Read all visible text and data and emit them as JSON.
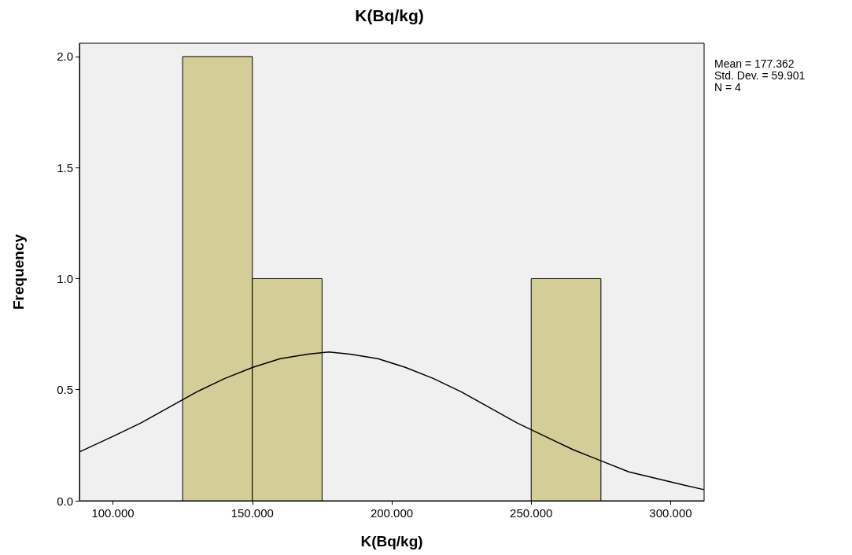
{
  "chart_data": {
    "type": "histogram",
    "title": "K(Bq/kg)",
    "xlabel": "K(Bq/kg)",
    "ylabel": "Frequency",
    "annotations": [
      "Mean = 177.362",
      "Std. Dev. = 59.901",
      "N = 4"
    ],
    "bins": [
      125,
      150,
      175,
      200,
      225,
      250,
      275
    ],
    "values": [
      2,
      1,
      0,
      0,
      0,
      1
    ],
    "color": "#d3ce97",
    "series": [
      {
        "type": "line",
        "color": "#000000",
        "x": [
          88,
          100,
          110,
          120,
          130,
          140,
          150,
          160,
          170,
          177.4,
          185,
          195,
          205,
          215,
          225,
          235,
          245,
          255,
          265,
          275,
          285,
          295,
          305,
          312
        ],
        "values": [
          0.22,
          0.29,
          0.35,
          0.42,
          0.49,
          0.55,
          0.6,
          0.64,
          0.66,
          0.67,
          0.66,
          0.64,
          0.6,
          0.55,
          0.49,
          0.42,
          0.35,
          0.29,
          0.23,
          0.18,
          0.13,
          0.1,
          0.07,
          0.05
        ]
      }
    ],
    "xlim": [
      88,
      312
    ],
    "xticks": [
      {
        "value": 100,
        "label": "100.000"
      },
      {
        "value": 150,
        "label": "150.000"
      },
      {
        "value": 200,
        "label": "200.000"
      },
      {
        "value": 250,
        "label": "250.000"
      },
      {
        "value": 300,
        "label": "300.000"
      }
    ],
    "ylim": [
      0,
      2.06
    ],
    "yticks": [
      {
        "value": 0,
        "label": "0.0"
      },
      {
        "value": 0.5,
        "label": "0.5"
      },
      {
        "value": 1,
        "label": "1.0"
      },
      {
        "value": 1.5,
        "label": "1.5"
      },
      {
        "value": 2,
        "label": "2.0"
      }
    ],
    "grid": false
  }
}
